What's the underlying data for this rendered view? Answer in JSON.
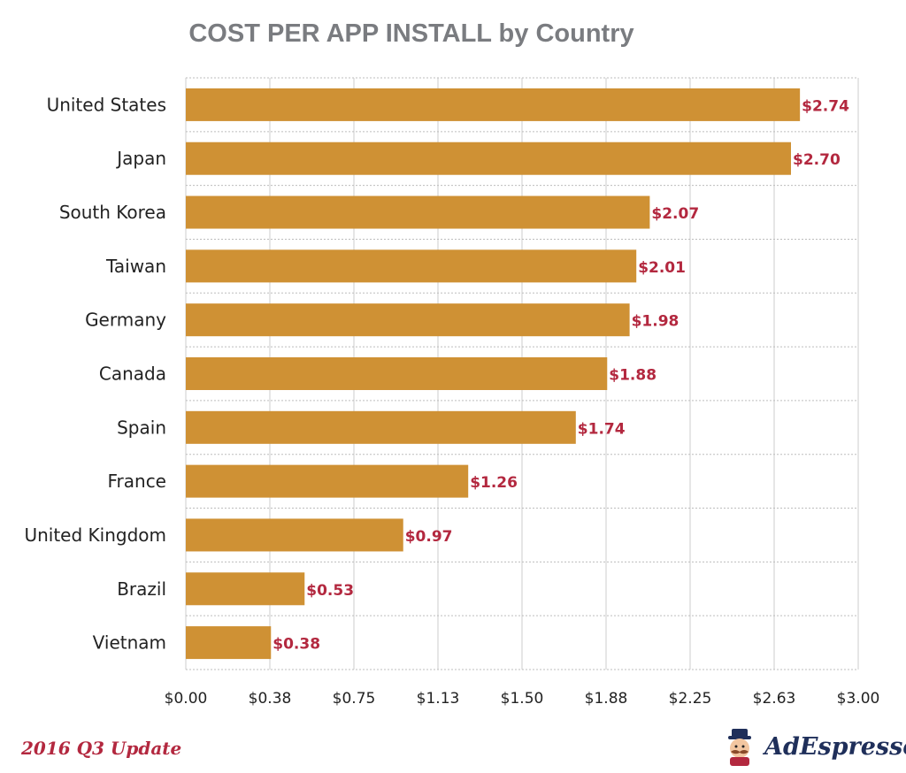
{
  "chart_data": {
    "type": "bar",
    "orientation": "horizontal",
    "title": "COST PER APP INSTALL by Country",
    "categories": [
      "United States",
      "Japan",
      "South Korea",
      "Taiwan",
      "Germany",
      "Canada",
      "Spain",
      "France",
      "United Kingdom",
      "Brazil",
      "Vietnam"
    ],
    "values": [
      2.74,
      2.7,
      2.07,
      2.01,
      1.98,
      1.88,
      1.74,
      1.26,
      0.97,
      0.53,
      0.38
    ],
    "value_labels": [
      "$2.74",
      "$2.70",
      "$2.07",
      "$2.01",
      "$1.98",
      "$1.88",
      "$1.74",
      "$1.26",
      "$0.97",
      "$0.53",
      "$0.38"
    ],
    "xlim": [
      0,
      3
    ],
    "xticks": [
      0,
      0.375,
      0.75,
      1.125,
      1.5,
      1.875,
      2.25,
      2.625,
      3
    ],
    "xtick_labels": [
      "$0.00",
      "$0.38",
      "$0.75",
      "$1.13",
      "$1.50",
      "$1.88",
      "$2.25",
      "$2.63",
      "$3.00"
    ],
    "grid": true,
    "bar_color": "#cf9134",
    "label_color": "#b3283f"
  },
  "footer": {
    "update_label": "2016 Q3 Update",
    "brand_name": "AdEspresso"
  },
  "icons": {
    "brand": "mascot-icon"
  }
}
